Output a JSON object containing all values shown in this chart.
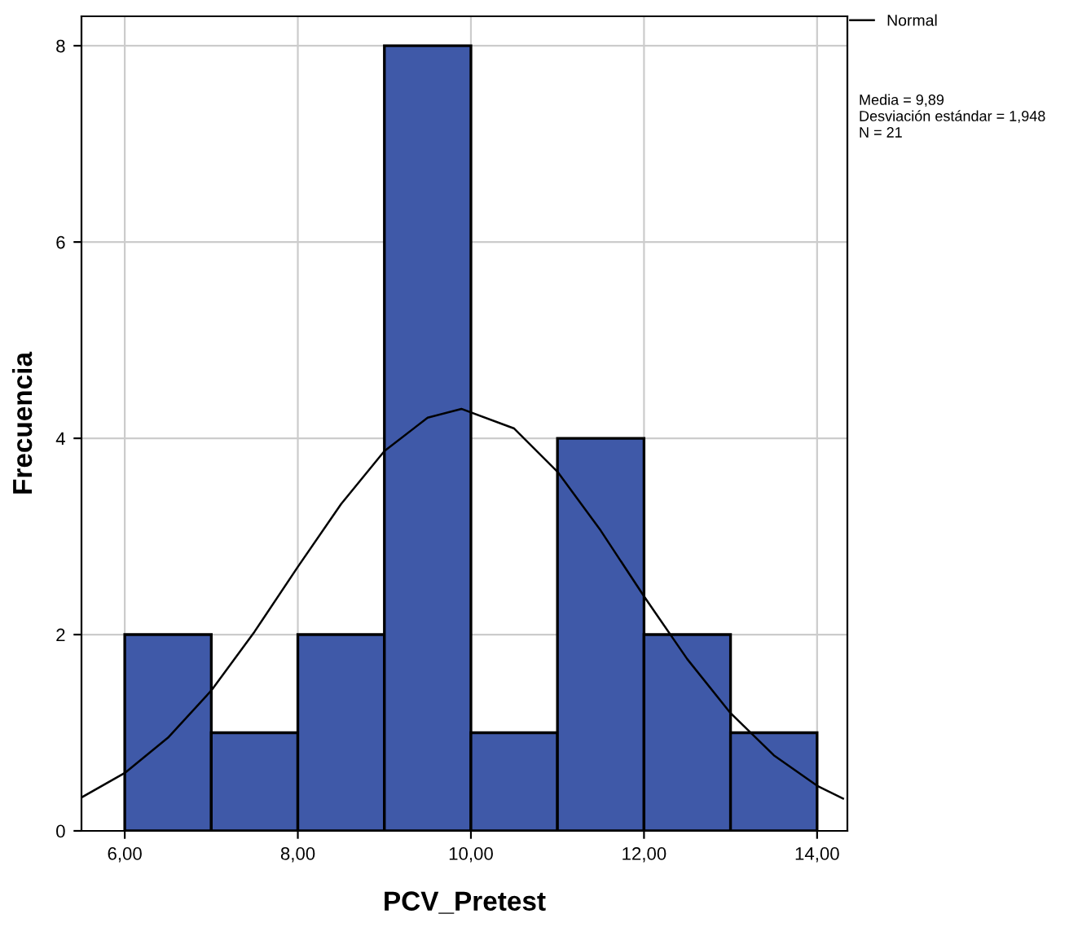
{
  "chart_data": {
    "type": "histogram",
    "xlabel": "PCV_Pretest",
    "ylabel": "Frecuencia",
    "xlim": [
      5.5,
      14.35
    ],
    "xticks": [
      {
        "value": 6,
        "label": "6,00"
      },
      {
        "value": 8,
        "label": "8,00"
      },
      {
        "value": 10,
        "label": "10,00"
      },
      {
        "value": 12,
        "label": "12,00"
      },
      {
        "value": 14,
        "label": "14,00"
      }
    ],
    "ylim": [
      0,
      8.3
    ],
    "yticks": [
      0,
      2,
      4,
      6,
      8
    ],
    "grid": true,
    "legend": "top right",
    "annotations": [
      "Media = 9,89",
      "Desviación estándar = 1,948",
      "N = 21"
    ],
    "series": [
      {
        "color": "#3f59a8",
        "bins": [
          6,
          7,
          8,
          9,
          10,
          11,
          12,
          13,
          14
        ],
        "values": [
          2,
          1,
          2,
          8,
          1,
          4,
          2,
          1
        ]
      },
      {
        "type": "line",
        "name": "Normal",
        "color": "#000000",
        "x": [
          5.5,
          6,
          6.5,
          7,
          7.5,
          8,
          8.5,
          9,
          9.5,
          9.89,
          10.5,
          11,
          11.5,
          12,
          12.5,
          13,
          13.5,
          14,
          14.3
        ],
        "values": [
          0.34,
          0.59,
          0.95,
          1.43,
          2.03,
          2.69,
          3.33,
          3.87,
          4.21,
          4.3,
          4.1,
          3.66,
          3.06,
          2.39,
          1.75,
          1.2,
          0.77,
          0.46,
          0.33
        ]
      }
    ]
  }
}
